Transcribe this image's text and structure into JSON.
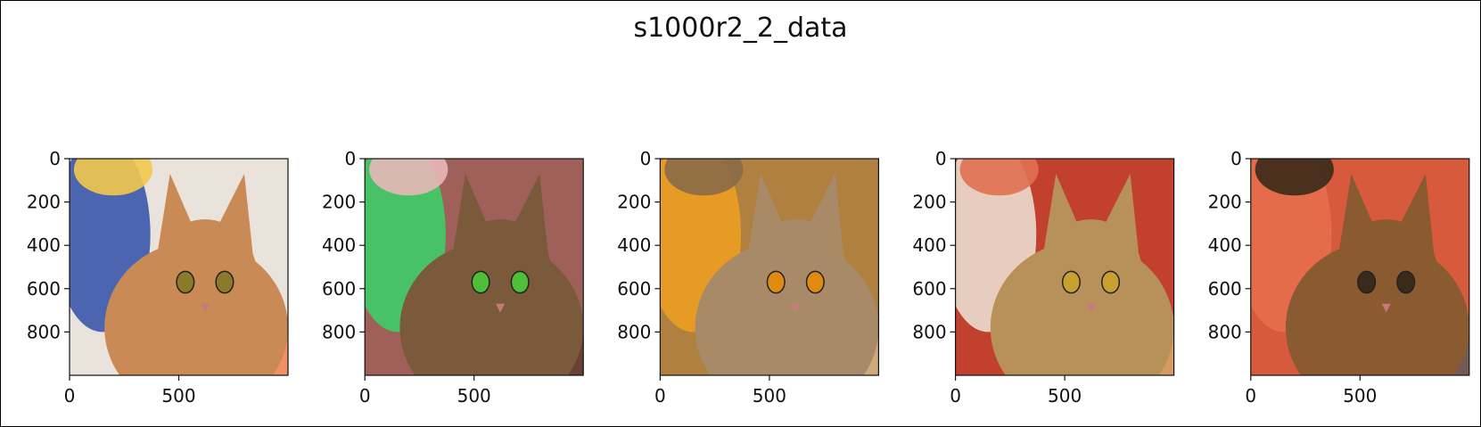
{
  "figure": {
    "title": "s1000r2_2_data"
  },
  "chart_data": {
    "type": "image-grid",
    "title": "s1000r2_2_data",
    "panels": [
      {
        "x_ticks": [
          0,
          500
        ],
        "y_ticks": [
          0,
          200,
          400,
          600,
          800
        ],
        "xlim": [
          0,
          1000
        ],
        "ylim": [
          1000,
          0
        ],
        "palette": {
          "bg": "#e9e3dc",
          "subject": "#c98a55",
          "accent1": "#2f4fa8",
          "accent2": "#f2c94c",
          "accent3": "#f27a4a",
          "eyes": "#8a7a2a"
        }
      },
      {
        "x_ticks": [
          0,
          500
        ],
        "y_ticks": [
          0,
          200,
          400,
          600,
          800
        ],
        "xlim": [
          0,
          1000
        ],
        "ylim": [
          1000,
          0
        ],
        "palette": {
          "bg": "#a0605a",
          "subject": "#7a5a3a",
          "accent1": "#3ad36a",
          "accent2": "#e8b8b8",
          "accent3": "#5a3a2a",
          "eyes": "#4fbf3a"
        }
      },
      {
        "x_ticks": [
          0,
          500
        ],
        "y_ticks": [
          0,
          200,
          400,
          600,
          800
        ],
        "xlim": [
          0,
          1000
        ],
        "ylim": [
          1000,
          0
        ],
        "palette": {
          "bg": "#b08040",
          "subject": "#a98a68",
          "accent1": "#f0a020",
          "accent2": "#8a6a48",
          "accent3": "#d6b48a",
          "eyes": "#e08a10"
        }
      },
      {
        "x_ticks": [
          0,
          500
        ],
        "y_ticks": [
          0,
          200,
          400,
          600,
          800
        ],
        "xlim": [
          0,
          1000
        ],
        "ylim": [
          1000,
          0
        ],
        "palette": {
          "bg": "#c2402e",
          "subject": "#b8905a",
          "accent1": "#ece6d8",
          "accent2": "#e07050",
          "accent3": "#d8b070",
          "eyes": "#c8a030"
        }
      },
      {
        "x_ticks": [
          0,
          500
        ],
        "y_ticks": [
          0,
          200,
          400,
          600,
          800
        ],
        "xlim": [
          0,
          1000
        ],
        "ylim": [
          1000,
          0
        ],
        "palette": {
          "bg": "#d85a3c",
          "subject": "#8a5a30",
          "accent1": "#e8704e",
          "accent2": "#3a2a1a",
          "accent3": "#5a5a5a",
          "eyes": "#3a2a1a"
        }
      }
    ]
  }
}
